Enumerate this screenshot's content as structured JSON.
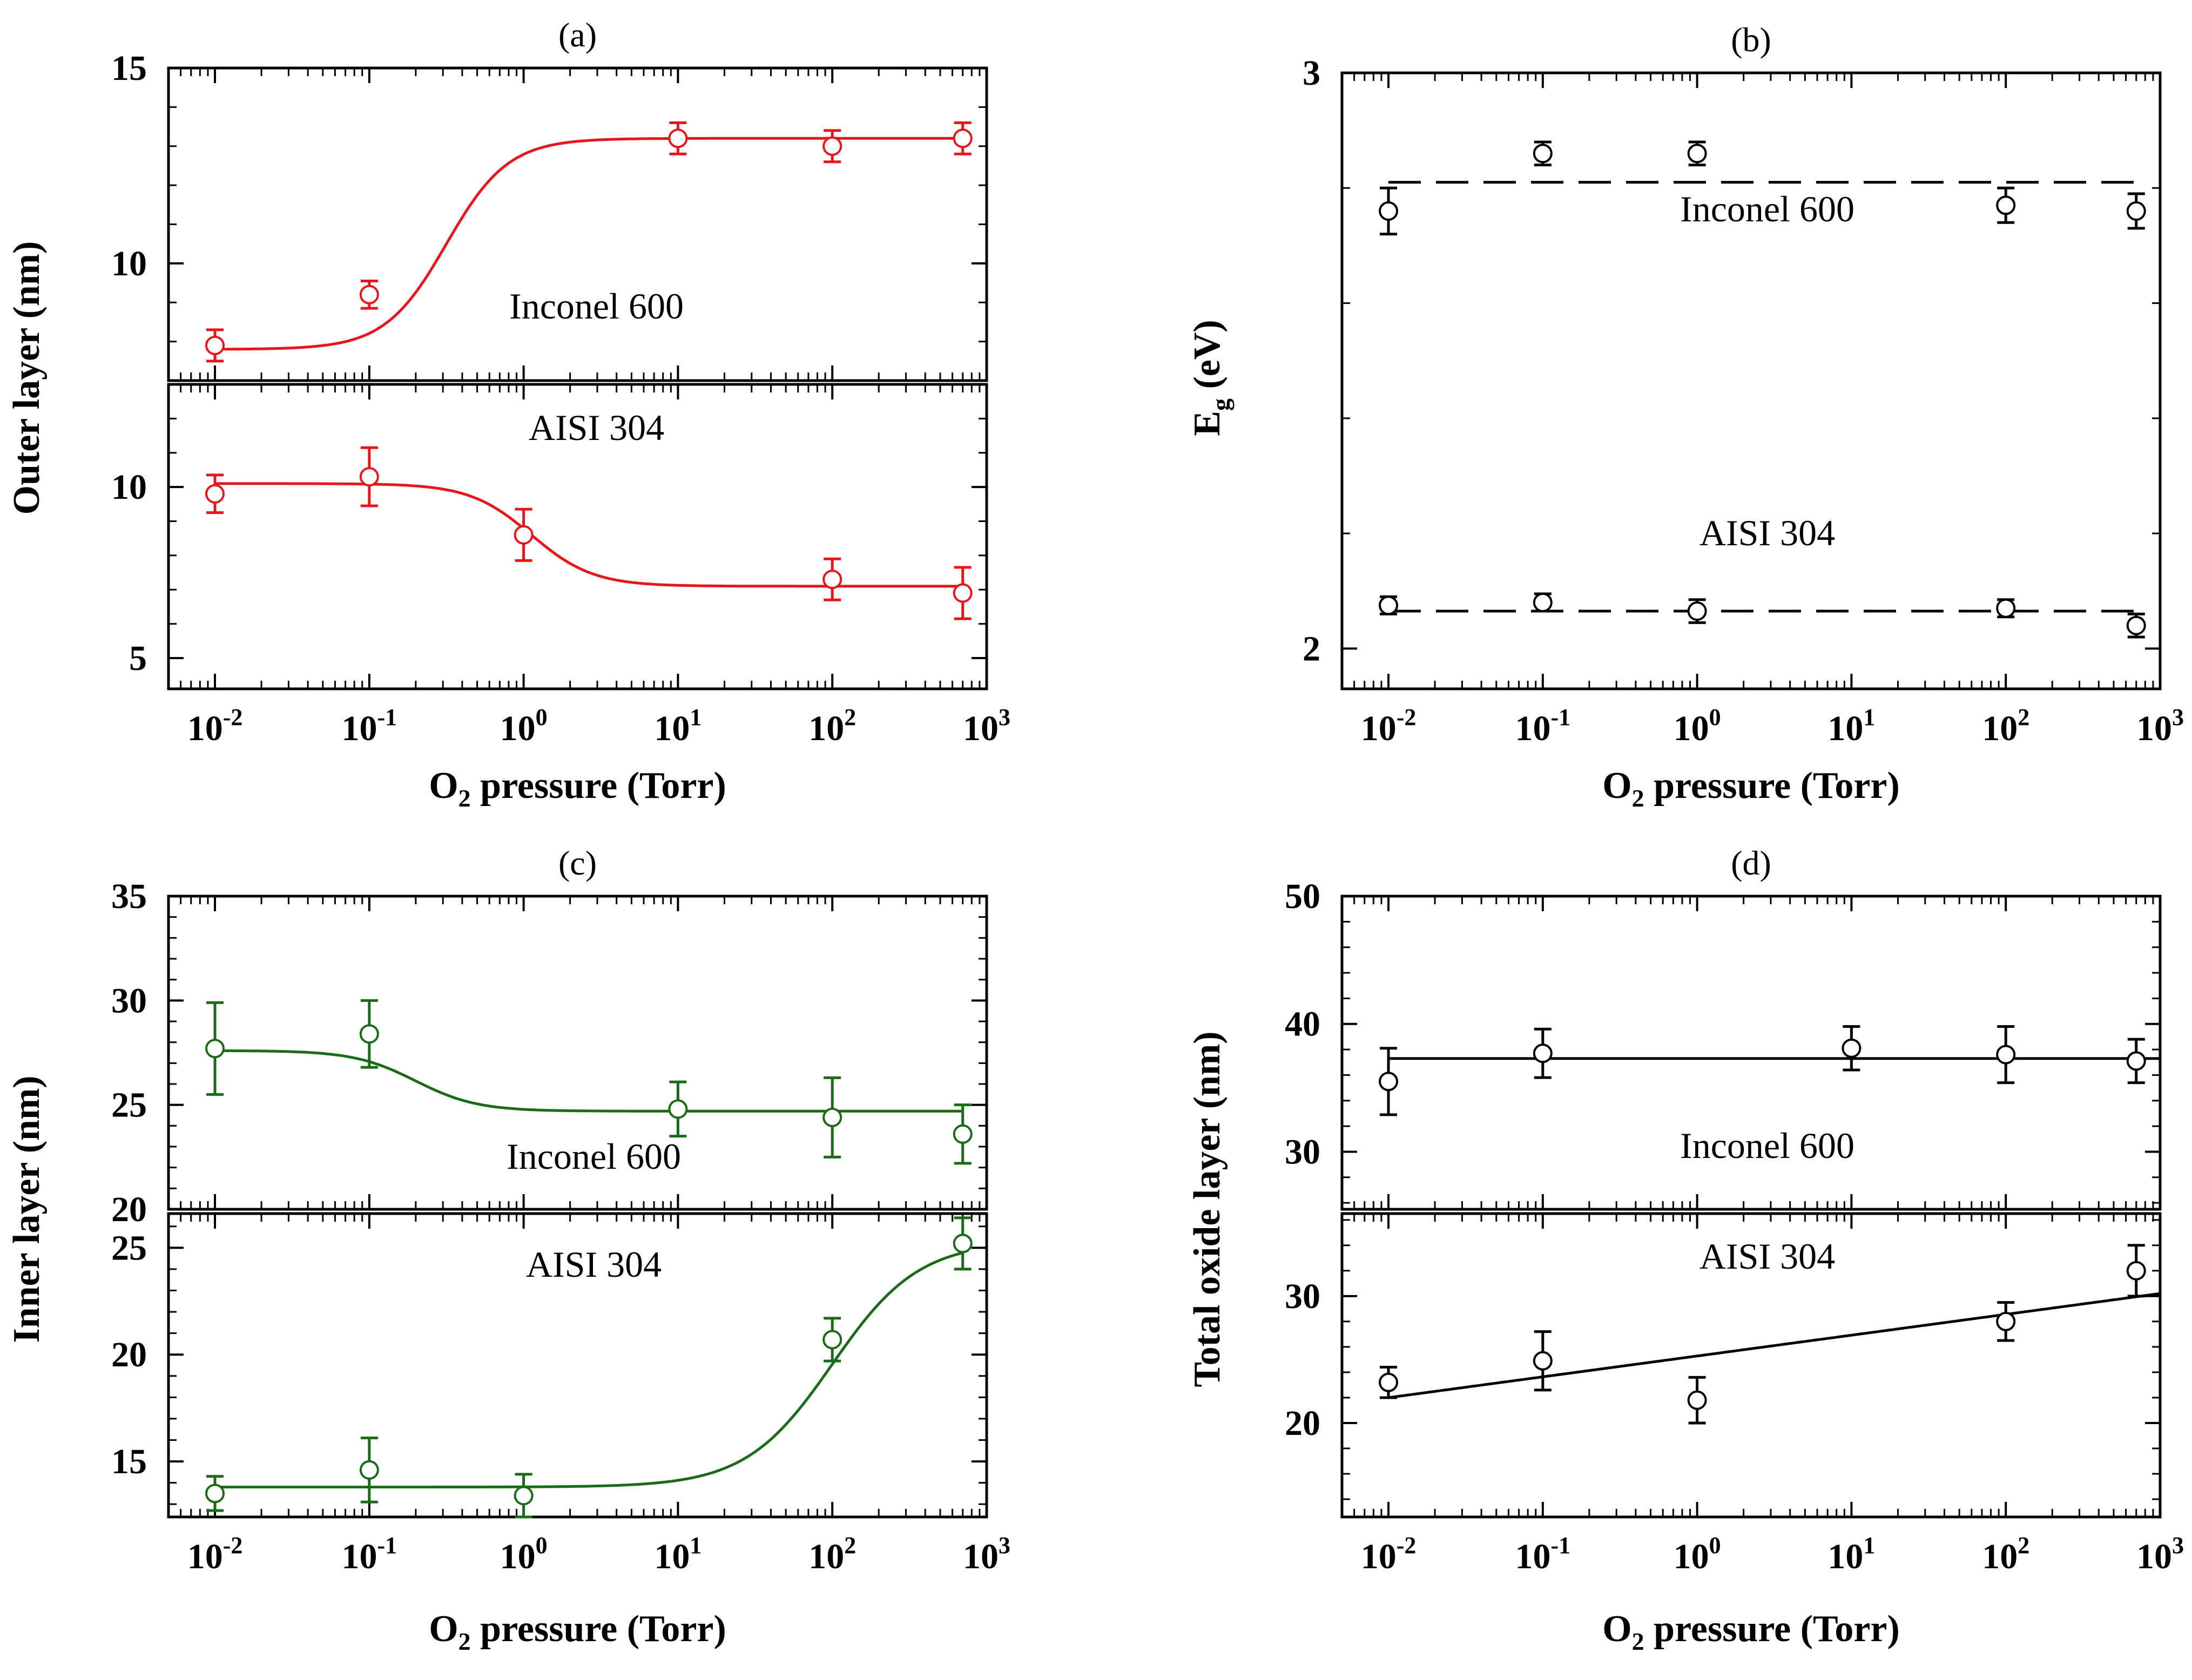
{
  "chart_data": [
    {
      "panel": "a",
      "type": "scatter",
      "title": "(a)",
      "xlabel": "O₂ pressure (Torr)",
      "ylabel": "Outer layer (nm)",
      "xscale": "log",
      "xlim": [
        0.005,
        1000
      ],
      "x_tick_labels": [
        "10-2",
        "10-1",
        "100",
        "101",
        "102",
        "103"
      ],
      "color": "#e8161b",
      "subplots": [
        {
          "name": "Inconel 600",
          "ylim": [
            7.0,
            15.0
          ],
          "y_ticks": [
            10,
            15
          ],
          "x": [
            0.01,
            0.1,
            10,
            100,
            700
          ],
          "y": [
            7.9,
            9.2,
            13.2,
            13.0,
            13.2
          ],
          "yerr": [
            0.4,
            0.35,
            0.4,
            0.4,
            0.4
          ],
          "fit": "sigmoid 7.8 → 13.2 nm"
        },
        {
          "name": "AISI 304",
          "ylim": [
            4.1,
            13.0
          ],
          "y_ticks": [
            5,
            10
          ],
          "x": [
            0.01,
            0.1,
            1,
            100,
            700
          ],
          "y": [
            9.8,
            10.3,
            8.6,
            7.3,
            6.9
          ],
          "yerr": [
            0.55,
            0.85,
            0.75,
            0.6,
            0.75
          ],
          "fit": "sigmoid 10.1 → 7.1 nm"
        }
      ]
    },
    {
      "panel": "b",
      "type": "scatter",
      "title": "(b)",
      "xlabel": "O₂ pressure (Torr)",
      "ylabel": "Eg (eV)",
      "xscale": "log",
      "xlim": [
        0.005,
        1000
      ],
      "ylim": [
        1.93,
        3.0
      ],
      "y_ticks": [
        2,
        3
      ],
      "x_tick_labels": [
        "10-2",
        "10-1",
        "100",
        "101",
        "102",
        "103"
      ],
      "color": "#000000",
      "series": [
        {
          "name": "Inconel 600",
          "x": [
            0.01,
            0.1,
            1,
            100,
            700
          ],
          "y": [
            2.76,
            2.86,
            2.86,
            2.77,
            2.76
          ],
          "yerr": [
            0.04,
            0.02,
            0.02,
            0.03,
            0.03
          ],
          "fit": "dashed line 2.81 eV"
        },
        {
          "name": "AISI 304",
          "x": [
            0.01,
            0.1,
            1,
            100,
            700
          ],
          "y": [
            2.075,
            2.08,
            2.065,
            2.07,
            2.04
          ],
          "yerr": [
            0.015,
            0.015,
            0.02,
            0.015,
            0.02
          ],
          "fit": "dashed line 2.065 eV"
        }
      ]
    },
    {
      "panel": "c",
      "type": "scatter",
      "title": "(c)",
      "xlabel": "O₂ pressure (Torr)",
      "ylabel": "Inner layer (nm)",
      "xscale": "log",
      "xlim": [
        0.005,
        1000
      ],
      "x_tick_labels": [
        "10-2",
        "10-1",
        "100",
        "101",
        "102",
        "103"
      ],
      "color": "#1a6b17",
      "subplots": [
        {
          "name": "Inconel 600",
          "ylim": [
            20.0,
            35.0
          ],
          "y_ticks": [
            20,
            25,
            30,
            35
          ],
          "x": [
            0.01,
            0.1,
            10,
            100,
            700
          ],
          "y": [
            27.7,
            28.4,
            24.8,
            24.4,
            23.6
          ],
          "yerr": [
            2.2,
            1.6,
            1.3,
            1.9,
            1.4
          ],
          "fit": "sigmoid 27.6 → 24.7 nm"
        },
        {
          "name": "AISI 304",
          "ylim": [
            12.4,
            26.6
          ],
          "y_ticks": [
            15,
            20,
            25
          ],
          "x": [
            0.01,
            0.1,
            1,
            100,
            700
          ],
          "y": [
            13.5,
            14.6,
            13.4,
            20.7,
            25.2
          ],
          "yerr": [
            0.8,
            1.5,
            1.0,
            1.0,
            1.2
          ],
          "fit": "sigmoid 13.8 → 25.3 nm"
        }
      ]
    },
    {
      "panel": "d",
      "type": "scatter",
      "title": "(d)",
      "xlabel": "O₂ pressure (Torr)",
      "ylabel": "Total oxide layer (nm)",
      "xscale": "log",
      "xlim": [
        0.005,
        1000
      ],
      "x_tick_labels": [
        "10-2",
        "10-1",
        "100",
        "101",
        "102",
        "103"
      ],
      "color": "#000000",
      "subplots": [
        {
          "name": "Inconel 600",
          "ylim": [
            25.5,
            50.0
          ],
          "y_ticks": [
            30,
            40,
            50
          ],
          "x": [
            0.01,
            0.1,
            10,
            100,
            700
          ],
          "y": [
            35.5,
            37.7,
            38.1,
            37.6,
            37.1
          ],
          "yerr": [
            2.6,
            1.9,
            1.7,
            2.2,
            1.7
          ],
          "fit": "horizontal line 37.3 nm"
        },
        {
          "name": "AISI 304",
          "ylim": [
            12.6,
            36.5
          ],
          "y_ticks": [
            20,
            30
          ],
          "x": [
            0.01,
            0.1,
            1,
            100,
            700
          ],
          "y": [
            23.2,
            24.9,
            21.8,
            28.0,
            32.0
          ],
          "yerr": [
            1.2,
            2.3,
            1.8,
            1.5,
            2.0
          ],
          "fit": "linear 22.0 → 30.2 nm"
        }
      ]
    }
  ]
}
